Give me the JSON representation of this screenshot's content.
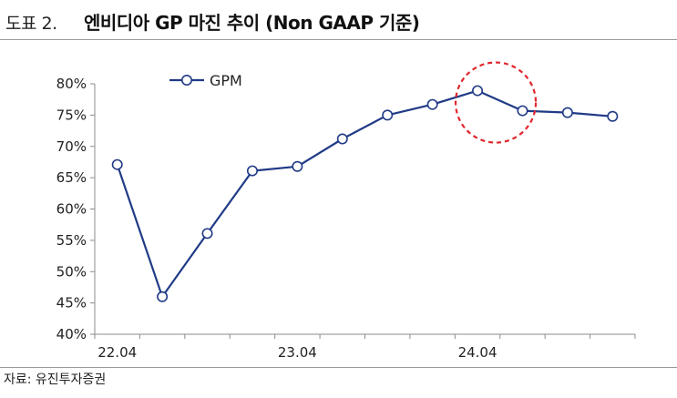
{
  "header": {
    "figure_label": "도표 2.",
    "title": "엔비디아 GP 마진 추이 (Non GAAP 기준)"
  },
  "footer": {
    "source": "자료: 유진투자증권"
  },
  "colors": {
    "series": "#203a86",
    "highlight": "#e0262d",
    "axis": "#8c8c8c"
  },
  "chart_data": {
    "type": "line",
    "title": "엔비디아 GP 마진 추이 (Non GAAP 기준)",
    "xlabel": "",
    "ylabel": "",
    "ylim": [
      40,
      80
    ],
    "yticks": [
      40,
      45,
      50,
      55,
      60,
      65,
      70,
      75,
      80
    ],
    "ytick_labels": [
      "40%",
      "45%",
      "50%",
      "55%",
      "60%",
      "65%",
      "70%",
      "75%",
      "80%"
    ],
    "x_tick_labels": [
      "22.04",
      "23.04",
      "24.04"
    ],
    "x_tick_label_positions": [
      0.5,
      4.5,
      8.5
    ],
    "legend": {
      "position": "top-left",
      "entries": [
        "GPM"
      ]
    },
    "grid": false,
    "series": [
      {
        "name": "GPM",
        "values": [
          67.1,
          46.0,
          56.1,
          66.1,
          66.8,
          71.2,
          75.0,
          76.7,
          78.9,
          75.7,
          75.4,
          74.8
        ]
      }
    ],
    "annotations": [
      {
        "type": "dashed-circle",
        "around_point_index": 8,
        "description": "peak highlight"
      }
    ]
  }
}
